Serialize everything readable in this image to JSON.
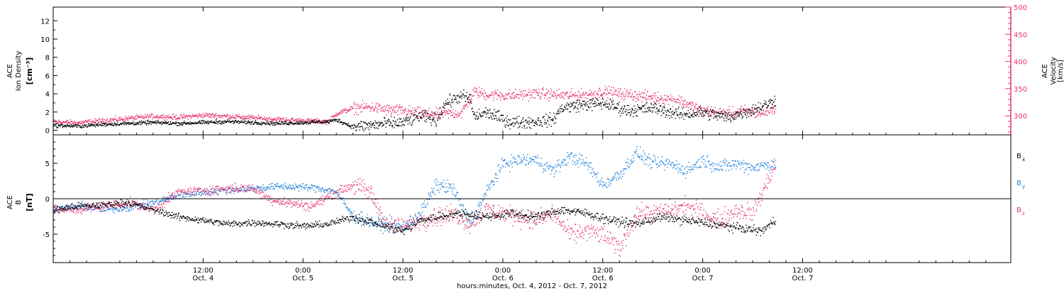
{
  "figure": {
    "xlabel": "hours:minutes, Oct. 4, 2012 - Oct. 7, 2012",
    "x_range_hours": [
      -6,
      109
    ],
    "x_ticks": [
      {
        "hour": 12,
        "time": "12:00",
        "date": "Oct. 4"
      },
      {
        "hour": 24,
        "time": "0:00",
        "date": "Oct. 5"
      },
      {
        "hour": 36,
        "time": "12:00",
        "date": "Oct. 5"
      },
      {
        "hour": 48,
        "time": "0:00",
        "date": "Oct. 6"
      },
      {
        "hour": 60,
        "time": "12:00",
        "date": "Oct. 6"
      },
      {
        "hour": 72,
        "time": "0:00",
        "date": "Oct. 7"
      },
      {
        "hour": 84,
        "time": "12:00",
        "date": "Oct. 7"
      }
    ],
    "data_end_hour": 80.7,
    "colors": {
      "black": "#000000",
      "pink": "#e8336b",
      "blue": "#1e82dc"
    }
  },
  "chart_data": [
    {
      "type": "scatter",
      "panel": "top",
      "left_axis": {
        "label_lines": [
          "ACE",
          "Ion Density"
        ],
        "unit": "[cm⁻³]",
        "ylim": [
          -0.5,
          13.5
        ],
        "ticks": [
          0,
          2,
          4,
          6,
          8,
          10,
          12
        ]
      },
      "right_axis": {
        "label_lines": [
          "ACE",
          "Velocity"
        ],
        "unit": "[km/s]",
        "ylim": [
          265,
          500
        ],
        "ticks": [
          300,
          350,
          400,
          450,
          500
        ]
      },
      "series": [
        {
          "axis": "left",
          "color": "#000000",
          "points": [
            [
              -6,
              0.6
            ],
            [
              -3,
              0.5
            ],
            [
              0,
              0.7
            ],
            [
              3,
              0.8
            ],
            [
              6,
              0.9
            ],
            [
              9,
              0.8
            ],
            [
              12,
              0.9
            ],
            [
              15,
              1.0
            ],
            [
              18,
              0.9
            ],
            [
              21,
              0.8
            ],
            [
              24,
              0.9
            ],
            [
              27,
              1.0
            ],
            [
              28,
              1.2
            ],
            [
              30,
              0.4
            ],
            [
              33,
              0.7
            ],
            [
              36,
              0.9
            ],
            [
              38,
              1.6
            ],
            [
              40,
              1.2
            ],
            [
              41,
              3.0
            ],
            [
              43,
              3.8
            ],
            [
              44,
              3.5
            ],
            [
              44.5,
              1.5
            ],
            [
              46,
              2.0
            ],
            [
              49,
              0.9
            ],
            [
              52,
              1.0
            ],
            [
              54,
              1.2
            ],
            [
              55,
              2.5
            ],
            [
              57,
              2.8
            ],
            [
              60,
              3.0
            ],
            [
              63,
              2.2
            ],
            [
              66,
              2.5
            ],
            [
              69,
              1.8
            ],
            [
              72,
              2.0
            ],
            [
              75,
              1.5
            ],
            [
              78,
              2.3
            ],
            [
              80,
              3.0
            ],
            [
              80.7,
              3.4
            ]
          ]
        },
        {
          "axis": "right",
          "color": "#e8336b",
          "points": [
            [
              -6,
              290
            ],
            [
              -3,
              288
            ],
            [
              0,
              292
            ],
            [
              3,
              296
            ],
            [
              6,
              300
            ],
            [
              9,
              298
            ],
            [
              12,
              302
            ],
            [
              15,
              300
            ],
            [
              18,
              297
            ],
            [
              21,
              294
            ],
            [
              24,
              292
            ],
            [
              27,
              290
            ],
            [
              28,
              305
            ],
            [
              30,
              315
            ],
            [
              32,
              317
            ],
            [
              34,
              312
            ],
            [
              36,
              310
            ],
            [
              38,
              305
            ],
            [
              40,
              304
            ],
            [
              43,
              306
            ],
            [
              44.5,
              345
            ],
            [
              46,
              340
            ],
            [
              49,
              338
            ],
            [
              52,
              342
            ],
            [
              54,
              340
            ],
            [
              56,
              338
            ],
            [
              58,
              340
            ],
            [
              60,
              345
            ],
            [
              63,
              340
            ],
            [
              66,
              335
            ],
            [
              69,
              330
            ],
            [
              72,
              310
            ],
            [
              75,
              305
            ],
            [
              77,
              310
            ],
            [
              79,
              305
            ],
            [
              80.7,
              315
            ]
          ]
        }
      ]
    },
    {
      "type": "scatter",
      "panel": "bottom",
      "left_axis": {
        "label_lines": [
          "ACE",
          "B"
        ],
        "unit": "[nT]",
        "ylim": [
          -9,
          9
        ],
        "ticks": [
          -5,
          0,
          5
        ]
      },
      "zero_line": 0,
      "series": [
        {
          "name": "Bx",
          "color": "#000000",
          "points": [
            [
              -6,
              -1.5
            ],
            [
              -3,
              -1.0
            ],
            [
              0,
              -0.8
            ],
            [
              3,
              -0.5
            ],
            [
              6,
              -1.5
            ],
            [
              9,
              -2.5
            ],
            [
              12,
              -3.0
            ],
            [
              15,
              -3.5
            ],
            [
              18,
              -3.3
            ],
            [
              21,
              -3.5
            ],
            [
              24,
              -3.8
            ],
            [
              27,
              -3.5
            ],
            [
              30,
              -2.5
            ],
            [
              33,
              -3.5
            ],
            [
              36,
              -4.5
            ],
            [
              38,
              -3.0
            ],
            [
              40,
              -2.5
            ],
            [
              43,
              -2.0
            ],
            [
              46,
              -2.5
            ],
            [
              49,
              -2.0
            ],
            [
              52,
              -2.5
            ],
            [
              55,
              -1.5
            ],
            [
              58,
              -2.0
            ],
            [
              61,
              -3.0
            ],
            [
              64,
              -3.5
            ],
            [
              67,
              -2.5
            ],
            [
              70,
              -3.0
            ],
            [
              73,
              -3.5
            ],
            [
              76,
              -4.0
            ],
            [
              79,
              -4.5
            ],
            [
              80.7,
              -3.0
            ]
          ]
        },
        {
          "name": "By",
          "color": "#1e82dc",
          "points": [
            [
              -6,
              -1.5
            ],
            [
              -3,
              -1.0
            ],
            [
              0,
              -1.5
            ],
            [
              3,
              -1.2
            ],
            [
              6,
              -0.5
            ],
            [
              9,
              0.5
            ],
            [
              12,
              1.0
            ],
            [
              15,
              1.3
            ],
            [
              18,
              1.5
            ],
            [
              21,
              1.8
            ],
            [
              24,
              1.7
            ],
            [
              26,
              1.5
            ],
            [
              28,
              1.0
            ],
            [
              30,
              -2.5
            ],
            [
              33,
              -3.5
            ],
            [
              36,
              -4.0
            ],
            [
              38,
              -2.0
            ],
            [
              40,
              2.0
            ],
            [
              42,
              1.5
            ],
            [
              44,
              -3.5
            ],
            [
              46,
              1.0
            ],
            [
              48,
              5.0
            ],
            [
              50,
              5.5
            ],
            [
              52,
              5.5
            ],
            [
              54,
              4.0
            ],
            [
              56,
              6.0
            ],
            [
              58,
              5.0
            ],
            [
              60,
              2.0
            ],
            [
              62,
              3.5
            ],
            [
              64,
              6.5
            ],
            [
              66,
              5.0
            ],
            [
              68,
              5.0
            ],
            [
              70,
              4.0
            ],
            [
              72,
              5.5
            ],
            [
              74,
              4.5
            ],
            [
              76,
              5.0
            ],
            [
              78,
              4.5
            ],
            [
              80.7,
              5.0
            ]
          ]
        },
        {
          "name": "Bz",
          "color": "#e8336b",
          "points": [
            [
              -6,
              -1.5
            ],
            [
              -3,
              -1.5
            ],
            [
              0,
              -1.0
            ],
            [
              3,
              -0.5
            ],
            [
              6,
              -1.5
            ],
            [
              9,
              1.0
            ],
            [
              12,
              1.2
            ],
            [
              15,
              1.5
            ],
            [
              18,
              1.5
            ],
            [
              20,
              0.0
            ],
            [
              22,
              -0.5
            ],
            [
              25,
              -1.0
            ],
            [
              28,
              1.0
            ],
            [
              30,
              2.0
            ],
            [
              32,
              1.0
            ],
            [
              34,
              -3.5
            ],
            [
              36,
              -4.0
            ],
            [
              38,
              -3.0
            ],
            [
              40,
              -2.5
            ],
            [
              42,
              -2.0
            ],
            [
              44,
              -3.5
            ],
            [
              46,
              -1.5
            ],
            [
              48,
              -2.0
            ],
            [
              50,
              -2.5
            ],
            [
              52,
              -3.0
            ],
            [
              54,
              -2.0
            ],
            [
              56,
              -5.0
            ],
            [
              58,
              -4.5
            ],
            [
              60,
              -5.0
            ],
            [
              62,
              -7.0
            ],
            [
              64,
              -2.0
            ],
            [
              66,
              -2.0
            ],
            [
              68,
              -1.5
            ],
            [
              70,
              -1.0
            ],
            [
              72,
              -2.0
            ],
            [
              74,
              -3.0
            ],
            [
              76,
              -1.5
            ],
            [
              78,
              -2.0
            ],
            [
              80.7,
              5.0
            ]
          ]
        }
      ],
      "legend": [
        {
          "main": "B",
          "sub": "x",
          "color": "#000000"
        },
        {
          "main": "B",
          "sub": "y",
          "color": "#1e82dc"
        },
        {
          "main": "B",
          "sub": "z",
          "color": "#e8336b"
        }
      ]
    }
  ]
}
